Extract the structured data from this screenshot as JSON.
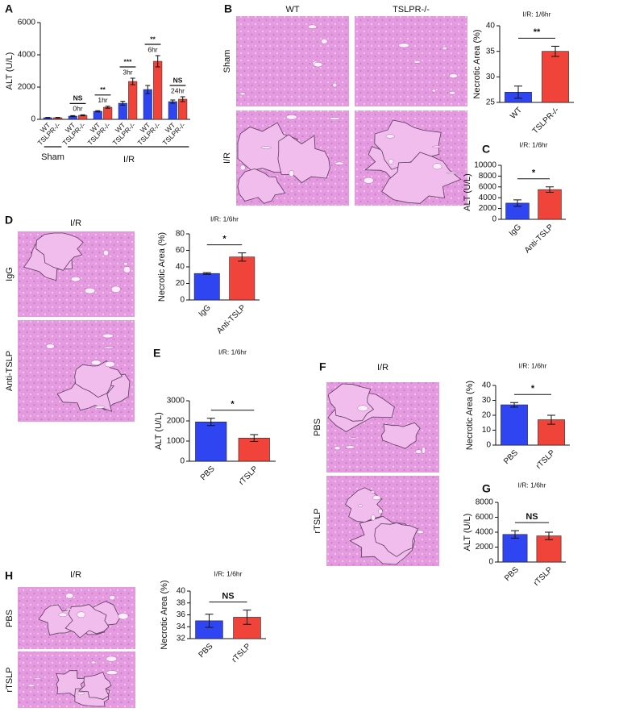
{
  "chart_data": [
    {
      "type": "grouped_bar",
      "panel": "A",
      "y_label": "ALT (U/L)",
      "ylim": [
        0,
        6000
      ],
      "yticks": [
        0,
        2000,
        4000,
        6000
      ],
      "series": [
        {
          "name": "WT",
          "color": "#2f45f2",
          "values": [
            100,
            200,
            500,
            1000,
            1850,
            1100
          ],
          "errors": [
            20,
            30,
            40,
            120,
            250,
            100
          ]
        },
        {
          "name": "TSLPR-/-",
          "color": "#f0443b",
          "values": [
            100,
            250,
            750,
            2350,
            3600,
            1250
          ],
          "errors": [
            20,
            30,
            60,
            200,
            350,
            150
          ]
        }
      ],
      "significance": [
        "NS",
        "**",
        "***",
        "**",
        "NS"
      ],
      "timepoints": [
        "0hr",
        "1hr",
        "3hr",
        "6hr",
        "24hr"
      ],
      "group_labels": [
        "Sham",
        "I/R"
      ]
    },
    {
      "type": "bar",
      "title": "I/R: 1/6hr",
      "y_label": "Necrotic Area (%)",
      "categories": [
        "WT",
        "TSLPR-/-"
      ],
      "values": [
        27,
        35
      ],
      "errors": [
        1.2,
        1
      ],
      "colors": [
        "#2f45f2",
        "#f0443b"
      ],
      "ylim": [
        25,
        40
      ],
      "yticks": [
        25,
        30,
        35,
        40
      ],
      "significance": "**"
    },
    {
      "type": "bar",
      "panel": "C",
      "title": "I/R: 1/6hr",
      "y_label": "ALT (U/L)",
      "categories": [
        "IgG",
        "Anti-TSLP"
      ],
      "values": [
        3000,
        5500
      ],
      "errors": [
        600,
        500
      ],
      "colors": [
        "#2f45f2",
        "#f0443b"
      ],
      "ylim": [
        0,
        10000
      ],
      "yticks": [
        0,
        2000,
        4000,
        6000,
        8000,
        10000
      ],
      "significance": "*"
    },
    {
      "type": "bar",
      "title": "I/R: 1/6hr",
      "y_label": "Necrotic Area (%)",
      "categories": [
        "IgG",
        "Anti-TSLP"
      ],
      "values": [
        32,
        52
      ],
      "errors": [
        1,
        5
      ],
      "colors": [
        "#2f45f2",
        "#f0443b"
      ],
      "ylim": [
        0,
        80
      ],
      "yticks": [
        0,
        20,
        40,
        60,
        80
      ],
      "significance": "*"
    },
    {
      "type": "bar",
      "panel": "E",
      "title": "I/R: 1/6hr",
      "y_label": "ALT (U/L)",
      "categories": [
        "PBS",
        "rTSLP"
      ],
      "values": [
        1950,
        1150
      ],
      "errors": [
        180,
        170
      ],
      "colors": [
        "#2f45f2",
        "#f0443b"
      ],
      "ylim": [
        0,
        3000
      ],
      "yticks": [
        0,
        1000,
        2000,
        3000
      ],
      "significance": "*"
    },
    {
      "type": "bar",
      "title": "I/R: 1/6hr",
      "y_label": "Necrotic Area (%)",
      "categories": [
        "PBS",
        "rTSLP"
      ],
      "values": [
        27,
        17
      ],
      "errors": [
        1.5,
        3
      ],
      "colors": [
        "#2f45f2",
        "#f0443b"
      ],
      "ylim": [
        0,
        40
      ],
      "yticks": [
        0,
        10,
        20,
        30,
        40
      ],
      "significance": "*"
    },
    {
      "type": "bar",
      "panel": "G",
      "title": "I/R: 1/6hr",
      "y_label": "ALT (U/L)",
      "categories": [
        "PBS",
        "rTSLP"
      ],
      "values": [
        3700,
        3500
      ],
      "errors": [
        500,
        500
      ],
      "colors": [
        "#2f45f2",
        "#f0443b"
      ],
      "ylim": [
        0,
        8000
      ],
      "yticks": [
        0,
        2000,
        4000,
        6000,
        8000
      ],
      "significance": "NS"
    },
    {
      "type": "bar",
      "title": "I/R: 1/6hr",
      "y_label": "Necrotic Area (%)",
      "categories": [
        "PBS",
        "rTSLP"
      ],
      "values": [
        35,
        35.6
      ],
      "errors": [
        1.1,
        1.2
      ],
      "colors": [
        "#2f45f2",
        "#f0443b"
      ],
      "ylim": [
        32,
        40
      ],
      "yticks": [
        32,
        34,
        36,
        38,
        40
      ],
      "significance": "NS"
    }
  ],
  "figure": {
    "image_panels": [
      {
        "panel": "B",
        "column_labels": [
          "WT",
          "TSLPR-/-"
        ],
        "row_labels": [
          "Sham",
          "I/R"
        ]
      },
      {
        "panel": "D",
        "title": "I/R",
        "row_labels": [
          "IgG",
          "Anti-TSLP"
        ]
      },
      {
        "panel": "F",
        "title": "I/R",
        "row_labels": [
          "PBS",
          "rTSLP"
        ]
      },
      {
        "panel": "H",
        "title": "I/R",
        "row_labels": [
          "PBS",
          "rTSLP"
        ]
      }
    ]
  }
}
